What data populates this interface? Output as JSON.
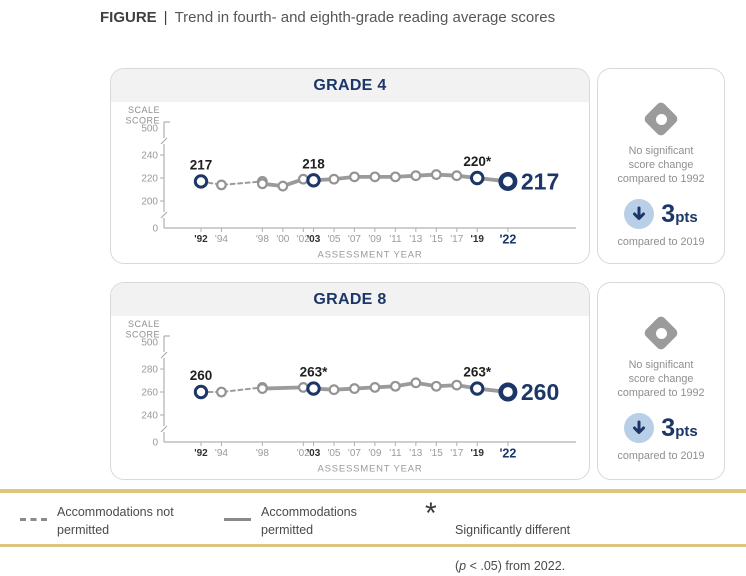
{
  "figure": {
    "label": "FIGURE",
    "separator": "|",
    "title": "Trend in fourth- and eighth-grade reading average scores"
  },
  "colors": {
    "navy": "#1b3667",
    "chart_gray": "#9b9b9b",
    "marker_gray": "#949494",
    "axis_gray": "#b0b0b0",
    "tick_text": "#9a9a9a",
    "tick_text_bold": "#303030",
    "label_dark": "#1f1f1f",
    "muted_text": "#8f8f8f",
    "gold": "#dcc57c",
    "light_blue": "#b9cfe8"
  },
  "chart_data": [
    {
      "type": "line",
      "title": "GRADE 4",
      "xlabel": "ASSESSMENT YEAR",
      "ylabel_lines": [
        "SCALE",
        "SCORE"
      ],
      "y_axis_top": "500",
      "y_axis_bottom": "0",
      "y_ticks_main": [
        240,
        220,
        200
      ],
      "axis_break": true,
      "x_ticks": [
        {
          "label": "'92",
          "year": 1992,
          "style": "bold"
        },
        {
          "label": "'94",
          "year": 1994,
          "style": "normal"
        },
        {
          "label": "'98",
          "year": 1998,
          "style": "normal"
        },
        {
          "label": "'00",
          "year": 2000,
          "style": "normal"
        },
        {
          "label": "'02",
          "year": 2002,
          "style": "normal"
        },
        {
          "label": "'03",
          "year": 2003,
          "style": "bold"
        },
        {
          "label": "'05",
          "year": 2005,
          "style": "normal"
        },
        {
          "label": "'07",
          "year": 2007,
          "style": "normal"
        },
        {
          "label": "'09",
          "year": 2009,
          "style": "normal"
        },
        {
          "label": "'11",
          "year": 2011,
          "style": "normal"
        },
        {
          "label": "'13",
          "year": 2013,
          "style": "normal"
        },
        {
          "label": "'15",
          "year": 2015,
          "style": "normal"
        },
        {
          "label": "'17",
          "year": 2017,
          "style": "normal"
        },
        {
          "label": "'19",
          "year": 2019,
          "style": "bold"
        },
        {
          "label": "'22",
          "year": 2022,
          "style": "accent"
        }
      ],
      "series": [
        {
          "name": "Accommodations not permitted",
          "style": "dashed",
          "points": [
            {
              "year": 1992,
              "value": 217
            },
            {
              "year": 1994,
              "value": 214
            },
            {
              "year": 1998,
              "value": 217
            }
          ]
        },
        {
          "name": "Accommodations permitted",
          "style": "solid",
          "points": [
            {
              "year": 1998,
              "value": 215
            },
            {
              "year": 2000,
              "value": 213
            },
            {
              "year": 2002,
              "value": 219
            },
            {
              "year": 2003,
              "value": 218
            },
            {
              "year": 2005,
              "value": 219
            },
            {
              "year": 2007,
              "value": 221
            },
            {
              "year": 2009,
              "value": 221
            },
            {
              "year": 2011,
              "value": 221
            },
            {
              "year": 2013,
              "value": 222
            },
            {
              "year": 2015,
              "value": 223
            },
            {
              "year": 2017,
              "value": 222
            },
            {
              "year": 2019,
              "value": 220
            },
            {
              "year": 2022,
              "value": 217
            }
          ]
        }
      ],
      "highlight_years": [
        1992,
        2003,
        2019
      ],
      "labels": [
        {
          "year": 1992,
          "value": 217,
          "text": "217"
        },
        {
          "year": 2003,
          "value": 218,
          "text": "218"
        },
        {
          "year": 2019,
          "value": 220,
          "text": "220*"
        }
      ],
      "end_label": {
        "year": 2022,
        "value": 217,
        "text": "217"
      }
    },
    {
      "type": "line",
      "title": "GRADE 8",
      "xlabel": "ASSESSMENT YEAR",
      "ylabel_lines": [
        "SCALE",
        "SCORE"
      ],
      "y_axis_top": "500",
      "y_axis_bottom": "0",
      "y_ticks_main": [
        280,
        260,
        240
      ],
      "axis_break": true,
      "x_ticks": [
        {
          "label": "'92",
          "year": 1992,
          "style": "bold"
        },
        {
          "label": "'94",
          "year": 1994,
          "style": "normal"
        },
        {
          "label": "'98",
          "year": 1998,
          "style": "normal"
        },
        {
          "label": "'02",
          "year": 2002,
          "style": "normal"
        },
        {
          "label": "'03",
          "year": 2003,
          "style": "bold"
        },
        {
          "label": "'05",
          "year": 2005,
          "style": "normal"
        },
        {
          "label": "'07",
          "year": 2007,
          "style": "normal"
        },
        {
          "label": "'09",
          "year": 2009,
          "style": "normal"
        },
        {
          "label": "'11",
          "year": 2011,
          "style": "normal"
        },
        {
          "label": "'13",
          "year": 2013,
          "style": "normal"
        },
        {
          "label": "'15",
          "year": 2015,
          "style": "normal"
        },
        {
          "label": "'17",
          "year": 2017,
          "style": "normal"
        },
        {
          "label": "'19",
          "year": 2019,
          "style": "bold"
        },
        {
          "label": "'22",
          "year": 2022,
          "style": "accent"
        }
      ],
      "series": [
        {
          "name": "Accommodations not permitted",
          "style": "dashed",
          "points": [
            {
              "year": 1992,
              "value": 260
            },
            {
              "year": 1994,
              "value": 260
            },
            {
              "year": 1998,
              "value": 264
            }
          ]
        },
        {
          "name": "Accommodations permitted",
          "style": "solid",
          "points": [
            {
              "year": 1998,
              "value": 263
            },
            {
              "year": 2002,
              "value": 264
            },
            {
              "year": 2003,
              "value": 263
            },
            {
              "year": 2005,
              "value": 262
            },
            {
              "year": 2007,
              "value": 263
            },
            {
              "year": 2009,
              "value": 264
            },
            {
              "year": 2011,
              "value": 265
            },
            {
              "year": 2013,
              "value": 268
            },
            {
              "year": 2015,
              "value": 265
            },
            {
              "year": 2017,
              "value": 266
            },
            {
              "year": 2019,
              "value": 263
            },
            {
              "year": 2022,
              "value": 260
            }
          ]
        }
      ],
      "highlight_years": [
        1992,
        2003,
        2019
      ],
      "labels": [
        {
          "year": 1992,
          "value": 260,
          "text": "260"
        },
        {
          "year": 2003,
          "value": 263,
          "text": "263*"
        },
        {
          "year": 2019,
          "value": 263,
          "text": "263*"
        }
      ],
      "end_label": {
        "year": 2022,
        "value": 260,
        "text": "260"
      }
    }
  ],
  "sidebars": [
    {
      "no_change_icon": "diamond-icon",
      "no_change_text": "No significant\nscore change\ncompared to 1992",
      "decline_icon": "down-arrow-icon",
      "change_value": "3",
      "change_unit": "pts",
      "change_caption": "compared to 2019"
    },
    {
      "no_change_icon": "diamond-icon",
      "no_change_text": "No significant\nscore change\ncompared to 1992",
      "decline_icon": "down-arrow-icon",
      "change_value": "3",
      "change_unit": "pts",
      "change_caption": "compared to 2019"
    }
  ],
  "legend": {
    "asterisk_glyph": "*",
    "items": [
      {
        "swatch": "dashed-line",
        "label": "Accommodations not\npermitted"
      },
      {
        "swatch": "solid-line",
        "label": "Accommodations\npermitted"
      },
      {
        "swatch": "asterisk",
        "line1": "Significantly different",
        "p_prefix": "(",
        "p": "p",
        "p_suffix": " < .05) from 2022."
      }
    ]
  }
}
